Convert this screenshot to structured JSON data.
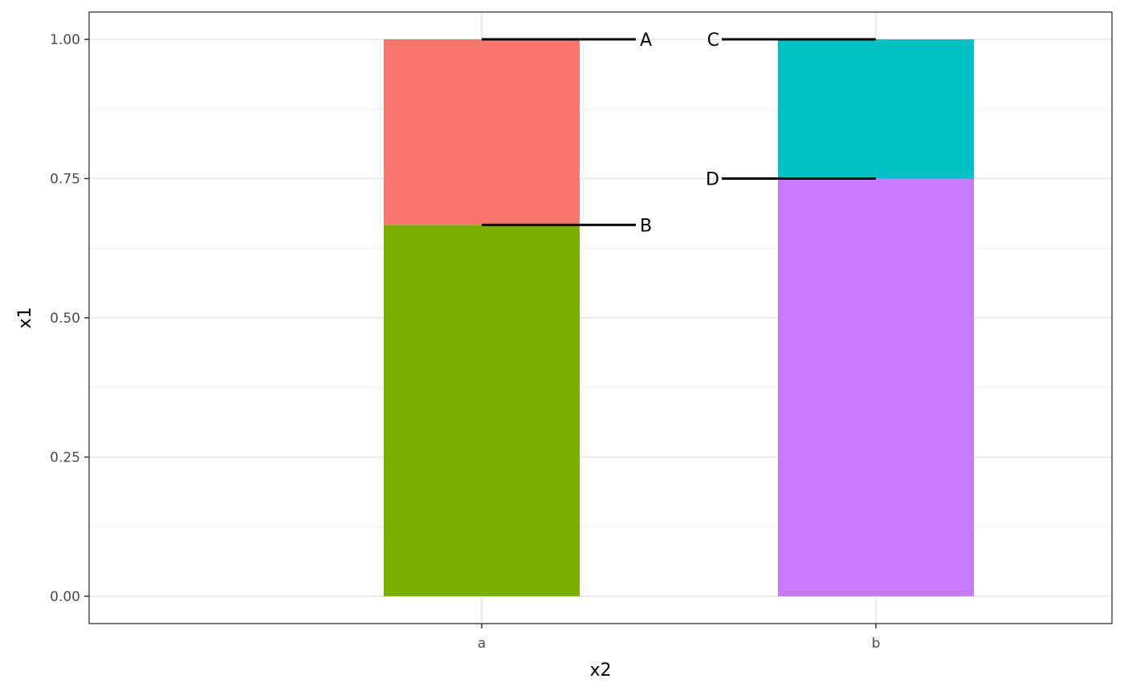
{
  "chart_data": {
    "type": "bar",
    "stacked": true,
    "xlabel": "x2",
    "ylabel": "x1",
    "categories": [
      "a",
      "b"
    ],
    "ylim": [
      0,
      1
    ],
    "y_ticks": [
      0,
      0.25,
      0.5,
      0.75,
      1
    ],
    "y_tick_labels": [
      "0.00",
      "0.25",
      "0.50",
      "0.75",
      "1.00"
    ],
    "grid": true,
    "legend": "none",
    "segments": [
      {
        "category": "a",
        "bottom": 0,
        "top": 0.6667,
        "color": "#7CAE00"
      },
      {
        "category": "a",
        "bottom": 0.6667,
        "top": 1.0,
        "color": "#F8766D"
      },
      {
        "category": "b",
        "bottom": 0,
        "top": 0.75,
        "color": "#C77CFF"
      },
      {
        "category": "b",
        "bottom": 0.75,
        "top": 1.0,
        "color": "#00BFC4"
      }
    ],
    "annotations": [
      {
        "label": "A",
        "category": "a",
        "y": 1.0,
        "side": "right"
      },
      {
        "label": "B",
        "category": "a",
        "y": 0.6667,
        "side": "right"
      },
      {
        "label": "C",
        "category": "b",
        "y": 1.0,
        "side": "left"
      },
      {
        "label": "D",
        "category": "b",
        "y": 0.75,
        "side": "left"
      }
    ]
  }
}
